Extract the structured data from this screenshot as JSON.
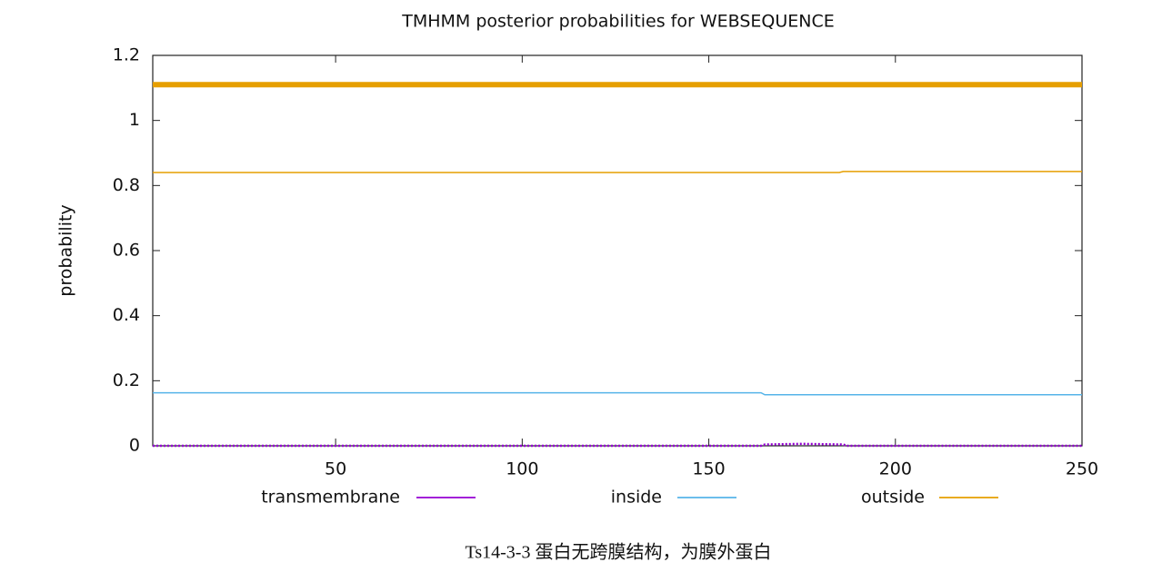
{
  "chart_data": {
    "type": "line",
    "title": "TMHMM posterior probabilities for WEBSEQUENCE",
    "ylabel": "probability",
    "caption": "Ts14-3-3 蛋白无跨膜结构，为膜外蛋白",
    "xlim": [
      1,
      250
    ],
    "xticks": [
      50,
      100,
      150,
      200,
      250
    ],
    "ylim": [
      0,
      1.2
    ],
    "yticks": [
      0,
      0.2,
      0.4,
      0.6,
      0.8,
      1,
      1.2
    ],
    "grid": false,
    "legend": "bottom",
    "series": [
      {
        "name": "transmembrane",
        "color": "#9400d3",
        "dash": true,
        "x": [
          1,
          164,
          165,
          175,
          186,
          187,
          250
        ],
        "values": [
          0,
          0,
          0.004,
          0.006,
          0.004,
          0,
          0
        ]
      },
      {
        "name": "inside",
        "color": "#56b4e9",
        "x": [
          1,
          164,
          165,
          250
        ],
        "values": [
          0.163,
          0.163,
          0.157,
          0.157
        ]
      },
      {
        "name": "outside",
        "color": "#e69f00",
        "x": [
          1,
          185,
          186,
          250
        ],
        "values": [
          0.84,
          0.84,
          0.843,
          0.843
        ]
      }
    ],
    "bands": [
      {
        "series": 2,
        "x": [
          1,
          250
        ],
        "value": 1.11
      }
    ]
  }
}
